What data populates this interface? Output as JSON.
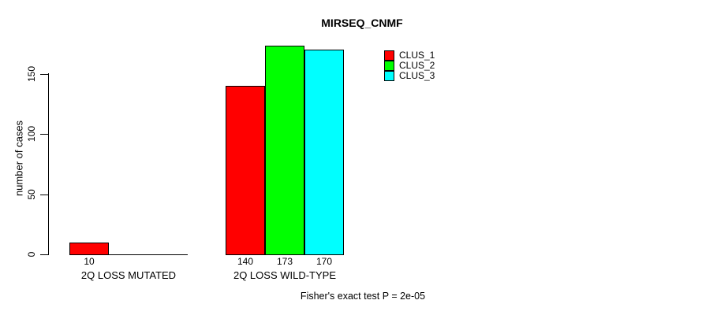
{
  "chart_data": {
    "type": "bar",
    "title": "MIRSEQ_CNMF",
    "ylabel": "number of cases",
    "xlabel": "",
    "categories": [
      "2Q LOSS MUTATED",
      "2Q LOSS WILD-TYPE"
    ],
    "series": [
      {
        "name": "CLUS_1",
        "color": "#ff0000",
        "values": [
          10,
          140
        ]
      },
      {
        "name": "CLUS_2",
        "color": "#00ff00",
        "values": [
          0,
          173
        ]
      },
      {
        "name": "CLUS_3",
        "color": "#00ffff",
        "values": [
          0,
          170
        ]
      }
    ],
    "bar_value_labels": [
      10,
      140,
      173,
      170
    ],
    "yticks": [
      0,
      50,
      100,
      150
    ],
    "ylim": [
      0,
      175
    ],
    "grid": false,
    "bar_border_color": "#000000",
    "background_color": "#ffffff",
    "legend_position": "top-right",
    "annotation": "Fisher's exact test P = 2e-05"
  }
}
